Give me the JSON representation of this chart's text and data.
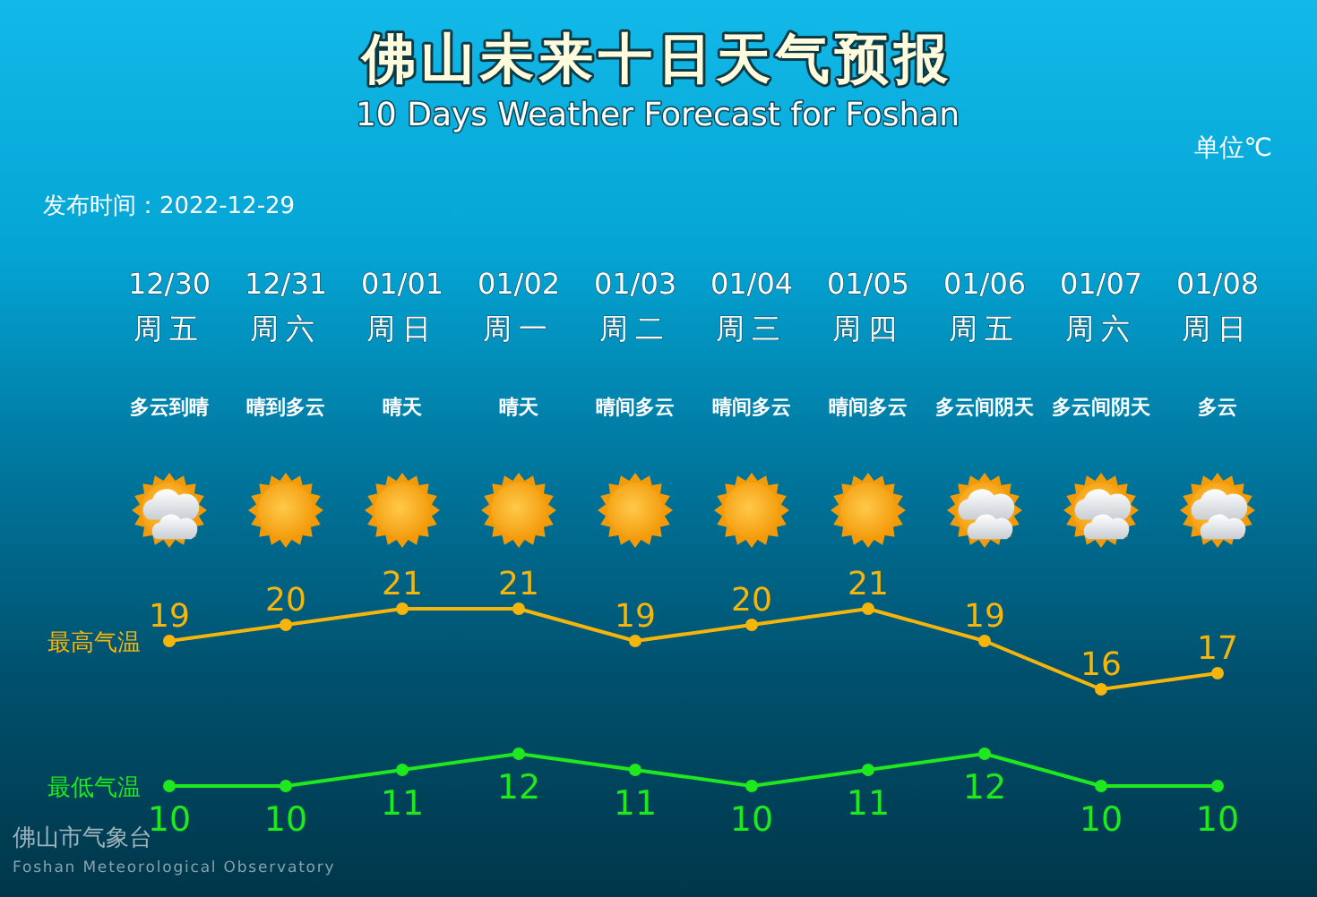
{
  "chart_data": [
    {
      "type": "line",
      "title": "佛山未来十日天气预报",
      "subtitle": "10 Days Weather Forecast for Foshan",
      "categories": [
        "12/30\n周五",
        "12/31\n周六",
        "01/01\n周日",
        "01/02\n周一",
        "01/03\n周二",
        "01/04\n周三",
        "01/05\n周四",
        "01/06\n周五",
        "01/07\n周六",
        "01/08\n周日"
      ],
      "series": [
        {
          "name": "最高气温",
          "color": "#f5b50a",
          "values": [
            19,
            20,
            21,
            21,
            19,
            20,
            21,
            19,
            16,
            17
          ]
        }
      ],
      "data_labels": true,
      "marker": "circle",
      "line_style": "solid",
      "tick_labels": "x",
      "annotations": [
        "单位℃",
        "发布时间：2022-12-29",
        "多云到晴",
        "晴到多云",
        "晴天",
        "晴天",
        "晴间多云",
        "晴间多云",
        "晴间多云",
        "多云间阴天",
        "多云间阴天",
        "多云"
      ]
    },
    {
      "type": "line",
      "categories": [
        null,
        null,
        null,
        null,
        null,
        null,
        null,
        null,
        null,
        null
      ],
      "series": [
        {
          "name": "最低气温",
          "color": "#1ee81e",
          "values": [
            10,
            10,
            11,
            12,
            11,
            10,
            11,
            12,
            10,
            10
          ]
        }
      ],
      "data_labels": true,
      "marker": "circle",
      "line_style": "solid",
      "annotations": [
        "佛山市气象台",
        "Foshan Meteorological Observatory"
      ]
    }
  ]
}
